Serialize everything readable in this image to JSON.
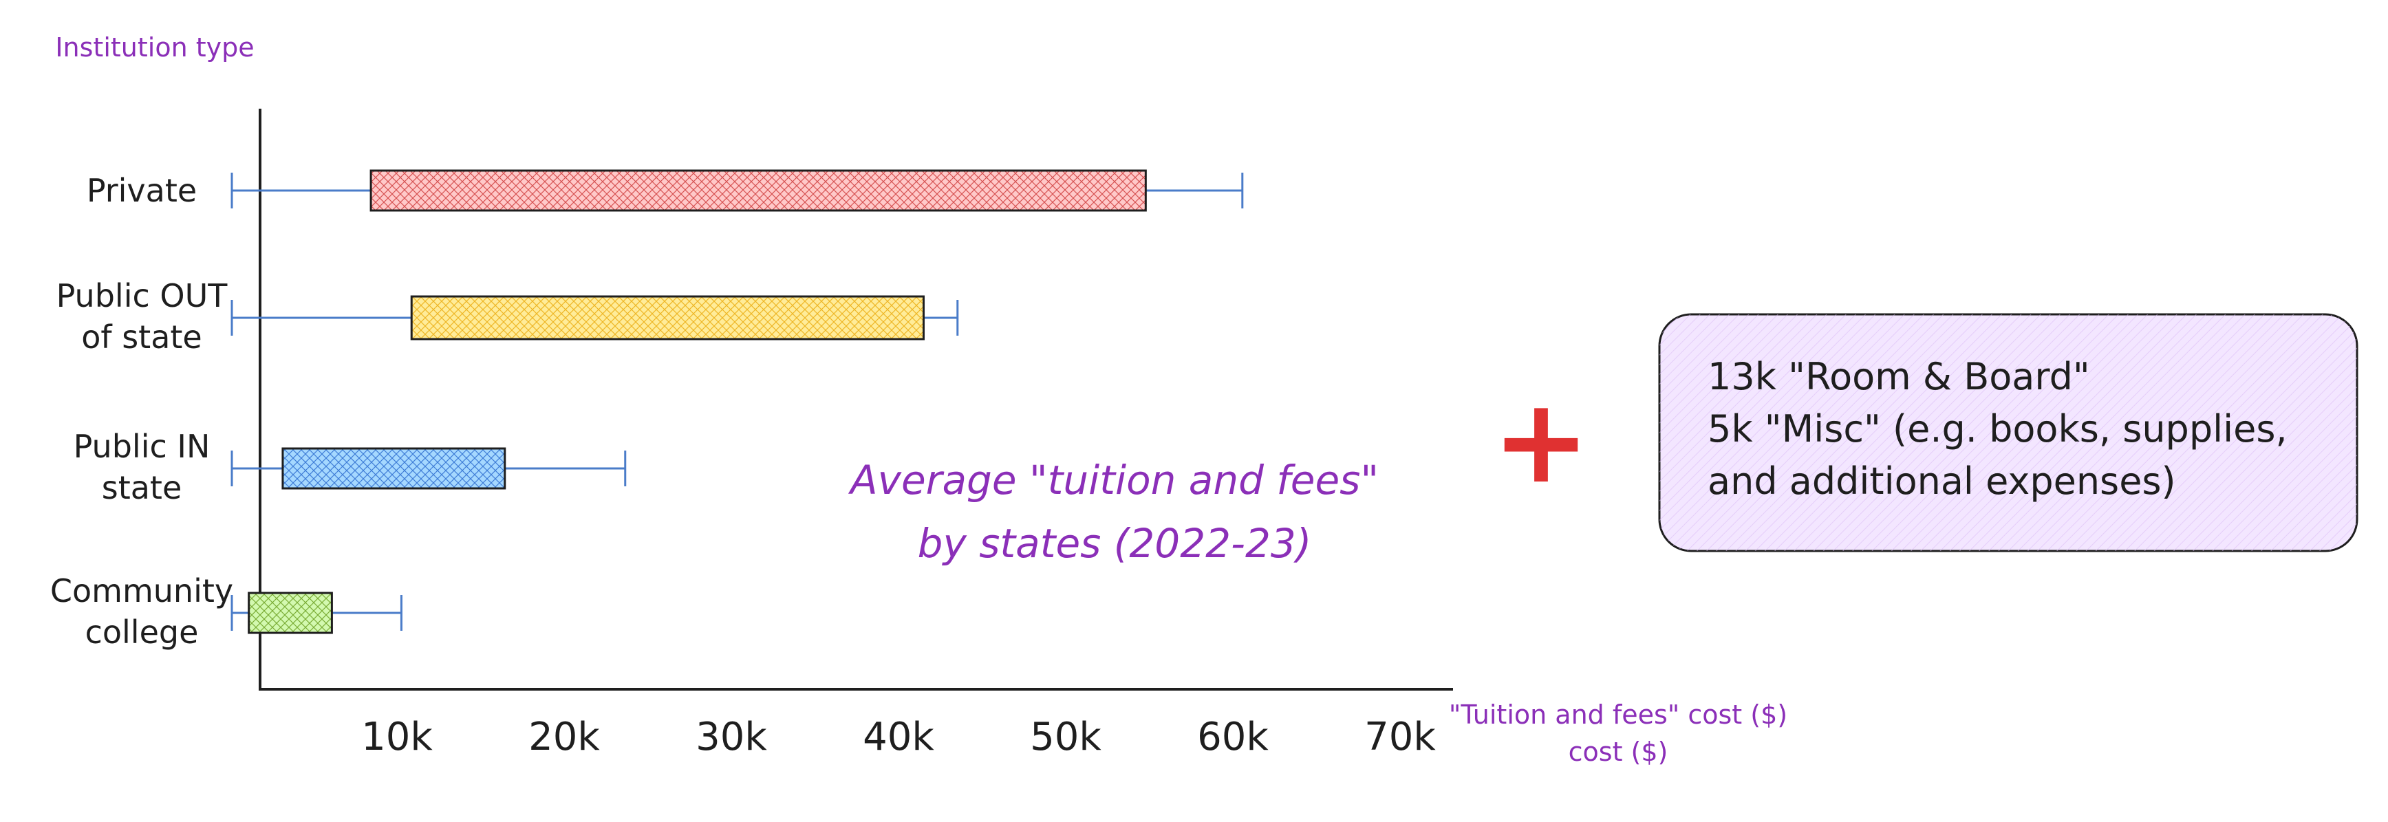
{
  "chart_data": {
    "type": "box",
    "ylabel": "Institution type",
    "xlabel": "\"Tuition and fees\" cost ($)",
    "subtitle_line1": "Average \"tuition and fees\"",
    "subtitle_line2": "by states (2022-23)",
    "xlim": [
      0,
      72000
    ],
    "x_ticks": [
      {
        "value": 10000,
        "label": "10k"
      },
      {
        "value": 20000,
        "label": "20k"
      },
      {
        "value": 30000,
        "label": "30k"
      },
      {
        "value": 40000,
        "label": "40k"
      },
      {
        "value": 50000,
        "label": "50k"
      },
      {
        "value": 60000,
        "label": "60k"
      },
      {
        "value": 70000,
        "label": "70k"
      }
    ],
    "categories": [
      {
        "line1": "Private",
        "line2": "",
        "min": 1100,
        "q1": 9300,
        "q3": 55000,
        "max": 60700,
        "color": "#ffc9c9",
        "edge": "#c92a2a"
      },
      {
        "line1": "Public OUT",
        "line2": "of state",
        "min": 1100,
        "q1": 11700,
        "q3": 41900,
        "max": 43900,
        "color": "#ffec99",
        "edge": "#e8a400"
      },
      {
        "line1": "Public IN",
        "line2": "state",
        "min": 1100,
        "q1": 4100,
        "q3": 17200,
        "max": 24300,
        "color": "#a5d8ff",
        "edge": "#1c5fc9"
      },
      {
        "line1": "Community",
        "line2": "college",
        "min": 1100,
        "q1": 2100,
        "q3": 7000,
        "max": 11100,
        "color": "#d3f9b0",
        "edge": "#5c940d"
      }
    ],
    "whisker_color": "#4a7cc9",
    "plus_symbol": "+",
    "plus_color": "#e03131",
    "note": {
      "lines": [
        "13k \"Room & Board\"",
        "5k \"Misc\" (e.g. books, supplies,",
        "and  additional expenses)"
      ],
      "fill": "#f3e6ff",
      "hatch": "#d9b8f5"
    }
  }
}
